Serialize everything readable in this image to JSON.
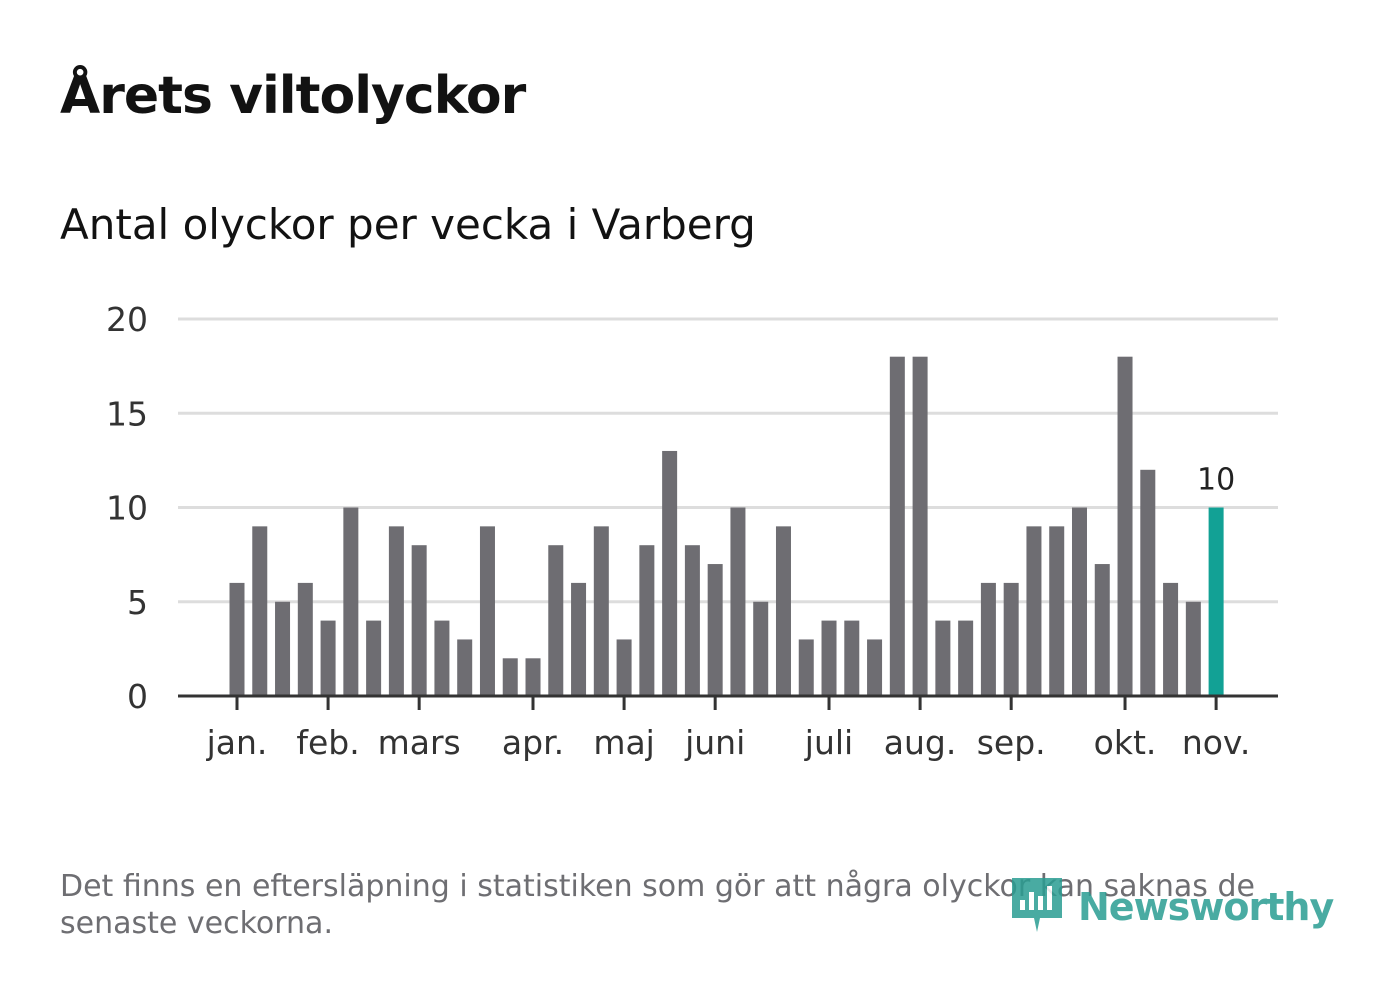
{
  "header": {
    "title": "Årets viltolyckor",
    "subtitle": "Antal olyckor per vecka i Varberg"
  },
  "footer": {
    "note": "Det finns en eftersläpning i statistiken som gör att några olyckor kan saknas de senaste veckorna.",
    "brand": "Newsworthy"
  },
  "colors": {
    "bar": "#6e6d72",
    "highlight": "#12a195",
    "grid": "#dddddd",
    "axis": "#333333",
    "text": "#333333"
  },
  "icons": {
    "brand_logo": "newsworthy-logo-icon"
  },
  "chart_data": {
    "type": "bar",
    "title": "Antal olyckor per vecka i Varberg",
    "xlabel": "",
    "ylabel": "",
    "ylim": [
      0,
      20
    ],
    "yticks": [
      0,
      5,
      10,
      15,
      20
    ],
    "grid": true,
    "weeks": [
      1,
      2,
      3,
      4,
      5,
      6,
      7,
      8,
      9,
      10,
      11,
      12,
      13,
      14,
      15,
      16,
      17,
      18,
      19,
      20,
      21,
      22,
      23,
      24,
      25,
      26,
      27,
      28,
      29,
      30,
      31,
      32,
      33,
      34,
      35,
      36,
      37,
      38,
      39,
      40,
      41,
      42,
      43,
      44
    ],
    "values": [
      6,
      9,
      5,
      6,
      4,
      10,
      4,
      9,
      8,
      4,
      3,
      9,
      2,
      2,
      8,
      6,
      9,
      3,
      8,
      13,
      8,
      7,
      10,
      5,
      9,
      3,
      4,
      4,
      3,
      18,
      18,
      4,
      4,
      6,
      6,
      9,
      9,
      10,
      7,
      18,
      12,
      6,
      5,
      10
    ],
    "highlight_index": 43,
    "highlight_label": "10",
    "month_ticks": [
      {
        "label": "jan.",
        "position": 0
      },
      {
        "label": "feb.",
        "position": 4
      },
      {
        "label": "mars",
        "position": 8
      },
      {
        "label": "apr.",
        "position": 13
      },
      {
        "label": "maj",
        "position": 17
      },
      {
        "label": "juni",
        "position": 21
      },
      {
        "label": "juli",
        "position": 26
      },
      {
        "label": "aug.",
        "position": 30
      },
      {
        "label": "sep.",
        "position": 34
      },
      {
        "label": "okt.",
        "position": 39
      },
      {
        "label": "nov.",
        "position": 43
      }
    ]
  }
}
